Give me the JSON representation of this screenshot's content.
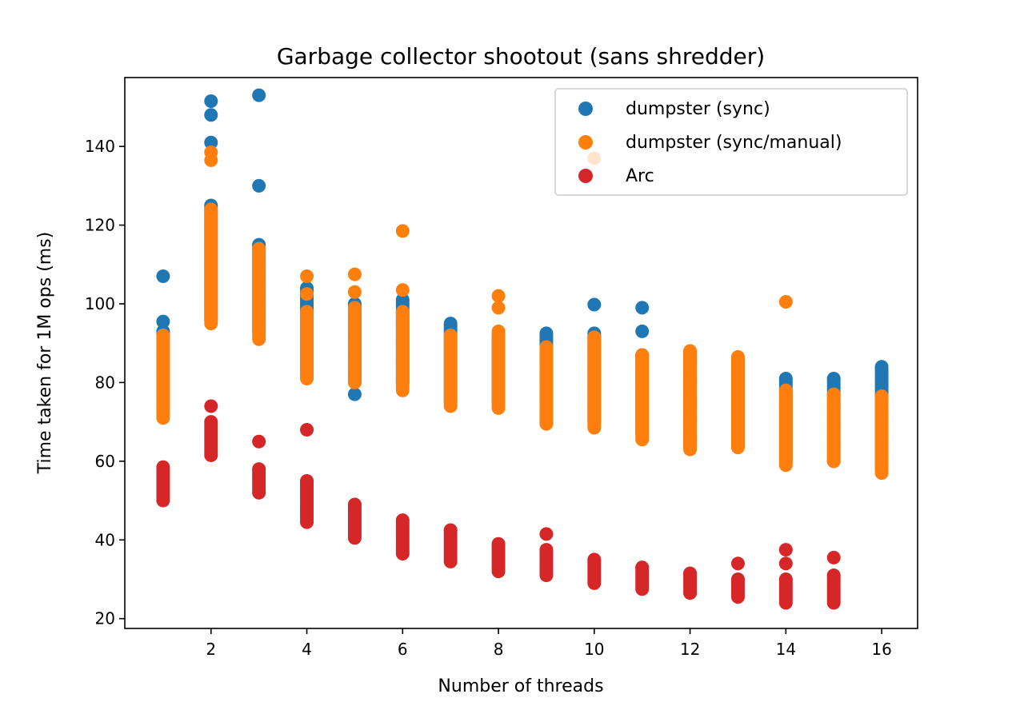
{
  "chart_data": {
    "type": "scatter",
    "title": "Garbage collector shootout (sans shredder)",
    "xlabel": "Number of threads",
    "ylabel": "Time taken for 1M ops (ms)",
    "xlim": [
      0.2,
      16.75
    ],
    "ylim": [
      17.5,
      157.5
    ],
    "xticks": [
      2,
      4,
      6,
      8,
      10,
      12,
      14,
      16
    ],
    "yticks": [
      20,
      40,
      60,
      80,
      100,
      120,
      140
    ],
    "grid": false,
    "legend_position": "upper right",
    "series": [
      {
        "name": "dumpster (sync)",
        "color": "#1f77b4",
        "points": [
          {
            "x": 1,
            "min": 73,
            "max": 93,
            "extra": [
              95.5,
              107
            ]
          },
          {
            "x": 2,
            "min": 96,
            "max": 125,
            "extra": [
              141,
              148,
              151.5
            ]
          },
          {
            "x": 3,
            "min": 93,
            "max": 115,
            "extra": [
              130,
              153
            ]
          },
          {
            "x": 4,
            "min": 83,
            "max": 104,
            "extra": []
          },
          {
            "x": 5,
            "min": 80,
            "max": 100,
            "extra": [
              77
            ]
          },
          {
            "x": 6,
            "min": 80,
            "max": 101,
            "extra": []
          },
          {
            "x": 7,
            "min": 75,
            "max": 95,
            "extra": []
          },
          {
            "x": 8,
            "min": 75,
            "max": 92,
            "extra": []
          },
          {
            "x": 9,
            "min": 70,
            "max": 92.5,
            "extra": []
          },
          {
            "x": 10,
            "min": 70,
            "max": 92.5,
            "extra": [
              99.8
            ]
          },
          {
            "x": 11,
            "min": 67,
            "max": 87,
            "extra": [
              93,
              99
            ]
          },
          {
            "x": 12,
            "min": 64,
            "max": 87,
            "extra": []
          },
          {
            "x": 13,
            "min": 64,
            "max": 86,
            "extra": []
          },
          {
            "x": 14,
            "min": 60,
            "max": 81,
            "extra": []
          },
          {
            "x": 15,
            "min": 60,
            "max": 81,
            "extra": []
          },
          {
            "x": 16,
            "min": 58,
            "max": 84,
            "extra": []
          }
        ]
      },
      {
        "name": "dumpster (sync/manual)",
        "color": "#ff7f0e",
        "points": [
          {
            "x": 1,
            "min": 71,
            "max": 92,
            "extra": []
          },
          {
            "x": 2,
            "min": 95,
            "max": 124,
            "extra": [
              136.5,
              138.5
            ]
          },
          {
            "x": 3,
            "min": 91,
            "max": 114,
            "extra": []
          },
          {
            "x": 4,
            "min": 81,
            "max": 98,
            "extra": [
              102.5,
              107
            ]
          },
          {
            "x": 5,
            "min": 80,
            "max": 99,
            "extra": [
              103,
              107.5
            ]
          },
          {
            "x": 6,
            "min": 78,
            "max": 98,
            "extra": [
              103.5,
              118.5
            ]
          },
          {
            "x": 7,
            "min": 74,
            "max": 92,
            "extra": []
          },
          {
            "x": 8,
            "min": 73.5,
            "max": 93,
            "extra": [
              99,
              102
            ]
          },
          {
            "x": 9,
            "min": 69.5,
            "max": 89,
            "extra": []
          },
          {
            "x": 10,
            "min": 68.5,
            "max": 91.5,
            "extra": [
              137
            ]
          },
          {
            "x": 11,
            "min": 65.5,
            "max": 87,
            "extra": []
          },
          {
            "x": 12,
            "min": 63,
            "max": 88,
            "extra": []
          },
          {
            "x": 13,
            "min": 63.5,
            "max": 86.5,
            "extra": []
          },
          {
            "x": 14,
            "min": 59,
            "max": 78,
            "extra": [
              100.5
            ]
          },
          {
            "x": 15,
            "min": 60,
            "max": 77,
            "extra": []
          },
          {
            "x": 16,
            "min": 57,
            "max": 76.5,
            "extra": []
          }
        ]
      },
      {
        "name": "Arc",
        "color": "#d62728",
        "points": [
          {
            "x": 1,
            "min": 50,
            "max": 58.5,
            "extra": []
          },
          {
            "x": 2,
            "min": 61.5,
            "max": 70,
            "extra": [
              74
            ]
          },
          {
            "x": 3,
            "min": 52,
            "max": 58,
            "extra": [
              65
            ]
          },
          {
            "x": 4,
            "min": 44.5,
            "max": 55,
            "extra": [
              68
            ]
          },
          {
            "x": 5,
            "min": 40.5,
            "max": 49,
            "extra": []
          },
          {
            "x": 6,
            "min": 36.5,
            "max": 45,
            "extra": []
          },
          {
            "x": 7,
            "min": 34.5,
            "max": 42.5,
            "extra": []
          },
          {
            "x": 8,
            "min": 32,
            "max": 39,
            "extra": []
          },
          {
            "x": 9,
            "min": 31,
            "max": 37.5,
            "extra": [
              41.5
            ]
          },
          {
            "x": 10,
            "min": 29,
            "max": 35,
            "extra": []
          },
          {
            "x": 11,
            "min": 27.5,
            "max": 33,
            "extra": []
          },
          {
            "x": 12,
            "min": 26.5,
            "max": 31.5,
            "extra": []
          },
          {
            "x": 13,
            "min": 25.5,
            "max": 30,
            "extra": [
              34
            ]
          },
          {
            "x": 14,
            "min": 24,
            "max": 30,
            "extra": [
              34,
              37.5
            ]
          },
          {
            "x": 15,
            "min": 24,
            "max": 31,
            "extra": [
              35.5
            ]
          }
        ]
      }
    ]
  }
}
